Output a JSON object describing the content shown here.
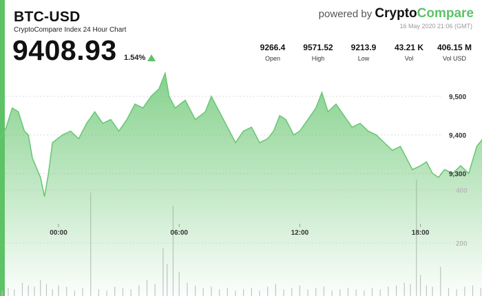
{
  "header": {
    "pair": "BTC-USD",
    "subtitle": "CryptoCompare Index 24 Hour Chart",
    "price": "9408.93",
    "change": "1.54%",
    "powered_by": "powered by",
    "brand_part1": "Crypto",
    "brand_part2": "Compare",
    "timestamp": "16 May 2020 21:06 (GMT)"
  },
  "stats": [
    {
      "value": "9266.4",
      "label": "Open"
    },
    {
      "value": "9571.52",
      "label": "High"
    },
    {
      "value": "9213.9",
      "label": "Low"
    },
    {
      "value": "43.21 K",
      "label": "Vol"
    },
    {
      "value": "406.15 M",
      "label": "Vol USD"
    }
  ],
  "colors": {
    "accent": "#5ec267",
    "line": "#6cc777",
    "area_top": "#5ec267",
    "volume": "#c4c4c4"
  },
  "chart_data": {
    "type": "area",
    "x_ticks": [
      "00:00",
      "06:00",
      "12:00",
      "18:00"
    ],
    "price_axis": {
      "ticks": [
        9300,
        9400,
        9500
      ],
      "labels": [
        "9,300",
        "9,400",
        "9,500"
      ],
      "range": [
        9213.9,
        9571.52
      ]
    },
    "volume_axis": {
      "ticks": [
        200,
        400
      ],
      "labels": [
        "200",
        "400"
      ]
    },
    "price_series": [
      {
        "t": -2.9,
        "v": 9390
      },
      {
        "t": -2.6,
        "v": 9420
      },
      {
        "t": -2.3,
        "v": 9470
      },
      {
        "t": -2.0,
        "v": 9460
      },
      {
        "t": -1.7,
        "v": 9410
      },
      {
        "t": -1.5,
        "v": 9400
      },
      {
        "t": -1.3,
        "v": 9340
      },
      {
        "t": -0.9,
        "v": 9290
      },
      {
        "t": -0.7,
        "v": 9240
      },
      {
        "t": -0.5,
        "v": 9300
      },
      {
        "t": -0.3,
        "v": 9380
      },
      {
        "t": 0.2,
        "v": 9400
      },
      {
        "t": 0.6,
        "v": 9410
      },
      {
        "t": 1.0,
        "v": 9390
      },
      {
        "t": 1.4,
        "v": 9430
      },
      {
        "t": 1.8,
        "v": 9460
      },
      {
        "t": 2.2,
        "v": 9430
      },
      {
        "t": 2.6,
        "v": 9440
      },
      {
        "t": 3.0,
        "v": 9410
      },
      {
        "t": 3.4,
        "v": 9440
      },
      {
        "t": 3.8,
        "v": 9480
      },
      {
        "t": 4.2,
        "v": 9470
      },
      {
        "t": 4.6,
        "v": 9500
      },
      {
        "t": 5.0,
        "v": 9520
      },
      {
        "t": 5.3,
        "v": 9560
      },
      {
        "t": 5.5,
        "v": 9500
      },
      {
        "t": 5.8,
        "v": 9470
      },
      {
        "t": 6.3,
        "v": 9490
      },
      {
        "t": 6.8,
        "v": 9440
      },
      {
        "t": 7.3,
        "v": 9460
      },
      {
        "t": 7.6,
        "v": 9500
      },
      {
        "t": 8.0,
        "v": 9460
      },
      {
        "t": 8.4,
        "v": 9420
      },
      {
        "t": 8.8,
        "v": 9380
      },
      {
        "t": 9.2,
        "v": 9410
      },
      {
        "t": 9.6,
        "v": 9420
      },
      {
        "t": 10.0,
        "v": 9380
      },
      {
        "t": 10.4,
        "v": 9390
      },
      {
        "t": 10.7,
        "v": 9410
      },
      {
        "t": 11.0,
        "v": 9450
      },
      {
        "t": 11.3,
        "v": 9440
      },
      {
        "t": 11.7,
        "v": 9400
      },
      {
        "t": 12.0,
        "v": 9410
      },
      {
        "t": 12.4,
        "v": 9440
      },
      {
        "t": 12.8,
        "v": 9470
      },
      {
        "t": 13.1,
        "v": 9510
      },
      {
        "t": 13.4,
        "v": 9460
      },
      {
        "t": 13.8,
        "v": 9480
      },
      {
        "t": 14.2,
        "v": 9450
      },
      {
        "t": 14.6,
        "v": 9420
      },
      {
        "t": 15.0,
        "v": 9430
      },
      {
        "t": 15.4,
        "v": 9410
      },
      {
        "t": 15.8,
        "v": 9400
      },
      {
        "t": 16.2,
        "v": 9380
      },
      {
        "t": 16.6,
        "v": 9360
      },
      {
        "t": 17.0,
        "v": 9370
      },
      {
        "t": 17.3,
        "v": 9340
      },
      {
        "t": 17.6,
        "v": 9310
      },
      {
        "t": 18.0,
        "v": 9320
      },
      {
        "t": 18.3,
        "v": 9330
      },
      {
        "t": 18.6,
        "v": 9300
      },
      {
        "t": 18.9,
        "v": 9290
      },
      {
        "t": 19.2,
        "v": 9310
      },
      {
        "t": 19.6,
        "v": 9300
      },
      {
        "t": 20.0,
        "v": 9320
      },
      {
        "t": 20.4,
        "v": 9300
      },
      {
        "t": 20.8,
        "v": 9370
      },
      {
        "t": 21.1,
        "v": 9390
      },
      {
        "t": 21.3,
        "v": 9409
      }
    ],
    "volume_series": [
      {
        "t": -2.8,
        "v": 20
      },
      {
        "t": -2.5,
        "v": 30
      },
      {
        "t": -2.2,
        "v": 25
      },
      {
        "t": -1.8,
        "v": 50
      },
      {
        "t": -1.5,
        "v": 40
      },
      {
        "t": -1.2,
        "v": 35
      },
      {
        "t": -0.9,
        "v": 60
      },
      {
        "t": -0.6,
        "v": 45
      },
      {
        "t": -0.3,
        "v": 25
      },
      {
        "t": 0.0,
        "v": 40
      },
      {
        "t": 0.4,
        "v": 35
      },
      {
        "t": 0.8,
        "v": 20
      },
      {
        "t": 1.2,
        "v": 30
      },
      {
        "t": 1.6,
        "v": 390
      },
      {
        "t": 2.0,
        "v": 25
      },
      {
        "t": 2.4,
        "v": 20
      },
      {
        "t": 2.8,
        "v": 35
      },
      {
        "t": 3.2,
        "v": 30
      },
      {
        "t": 3.6,
        "v": 25
      },
      {
        "t": 4.0,
        "v": 40
      },
      {
        "t": 4.4,
        "v": 60
      },
      {
        "t": 4.8,
        "v": 45
      },
      {
        "t": 5.2,
        "v": 180
      },
      {
        "t": 5.4,
        "v": 120
      },
      {
        "t": 5.7,
        "v": 340
      },
      {
        "t": 6.0,
        "v": 90
      },
      {
        "t": 6.4,
        "v": 50
      },
      {
        "t": 6.8,
        "v": 40
      },
      {
        "t": 7.2,
        "v": 30
      },
      {
        "t": 7.6,
        "v": 35
      },
      {
        "t": 8.0,
        "v": 25
      },
      {
        "t": 8.4,
        "v": 30
      },
      {
        "t": 8.8,
        "v": 20
      },
      {
        "t": 9.2,
        "v": 25
      },
      {
        "t": 9.6,
        "v": 30
      },
      {
        "t": 10.0,
        "v": 20
      },
      {
        "t": 10.4,
        "v": 35
      },
      {
        "t": 10.8,
        "v": 45
      },
      {
        "t": 11.2,
        "v": 25
      },
      {
        "t": 11.6,
        "v": 30
      },
      {
        "t": 12.0,
        "v": 40
      },
      {
        "t": 12.4,
        "v": 25
      },
      {
        "t": 12.8,
        "v": 30
      },
      {
        "t": 13.2,
        "v": 35
      },
      {
        "t": 13.6,
        "v": 20
      },
      {
        "t": 14.0,
        "v": 25
      },
      {
        "t": 14.4,
        "v": 30
      },
      {
        "t": 14.8,
        "v": 25
      },
      {
        "t": 15.2,
        "v": 20
      },
      {
        "t": 15.6,
        "v": 30
      },
      {
        "t": 16.0,
        "v": 25
      },
      {
        "t": 16.4,
        "v": 35
      },
      {
        "t": 16.8,
        "v": 40
      },
      {
        "t": 17.2,
        "v": 50
      },
      {
        "t": 17.5,
        "v": 45
      },
      {
        "t": 17.8,
        "v": 440
      },
      {
        "t": 18.0,
        "v": 80
      },
      {
        "t": 18.3,
        "v": 40
      },
      {
        "t": 18.6,
        "v": 35
      },
      {
        "t": 19.0,
        "v": 110
      },
      {
        "t": 19.4,
        "v": 30
      },
      {
        "t": 19.8,
        "v": 25
      },
      {
        "t": 20.2,
        "v": 35
      },
      {
        "t": 20.6,
        "v": 40
      },
      {
        "t": 21.0,
        "v": 30
      }
    ]
  }
}
